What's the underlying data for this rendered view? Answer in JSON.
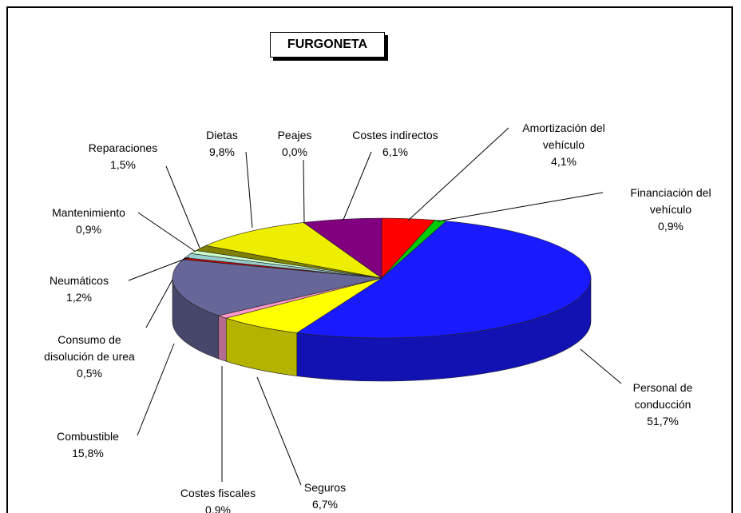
{
  "chart_data": {
    "type": "pie3d",
    "title": "FURGONETA",
    "categories": [
      "Amortización del vehículo",
      "Financiación del vehículo",
      "Personal de conducción",
      "Seguros",
      "Costes fiscales",
      "Combustible",
      "Consumo de disolución de urea",
      "Neumáticos",
      "Mantenimiento",
      "Reparaciones",
      "Dietas",
      "Peajes",
      "Costes indirectos"
    ],
    "values": [
      4.1,
      0.9,
      51.7,
      6.7,
      0.9,
      15.8,
      0.5,
      1.2,
      0.9,
      1.5,
      9.8,
      0.0,
      6.1
    ],
    "value_labels": [
      "4,1%",
      "0,9%",
      "51,7%",
      "6,7%",
      "0,9%",
      "15,8%",
      "0,5%",
      "1,2%",
      "0,9%",
      "1,5%",
      "9,8%",
      "0,0%",
      "6,1%"
    ],
    "colors": [
      "#ff0000",
      "#00cc00",
      "#1a1aff",
      "#ffff00",
      "#ff99cc",
      "#666699",
      "#cc0000",
      "#99cccc",
      "#ccffcc",
      "#808000",
      "#eeee00",
      "#3333cc",
      "#800080"
    ]
  }
}
